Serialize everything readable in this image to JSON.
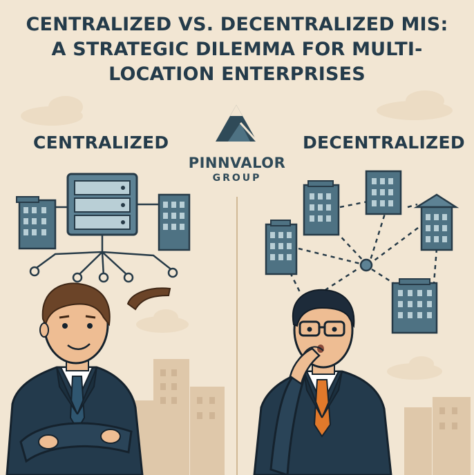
{
  "title": {
    "line1": "CENTRALIZED VS. DECENTRALIZED MIS:",
    "line2": "A STRATEGIC DILEMMA FOR MULTI-",
    "line3": "LOCATION ENTERPRISES"
  },
  "left_label": "CENTRALIZED",
  "right_label": "DECENTRALIZED",
  "brand": {
    "name": "PINNVALOR",
    "sub": "GROUP"
  },
  "colors": {
    "background": "#f2e6d3",
    "building": "#4e7283",
    "outline": "#263a47",
    "suit": "#233a4c",
    "left_tie": "#2f5670",
    "right_tie": "#e1792b"
  }
}
